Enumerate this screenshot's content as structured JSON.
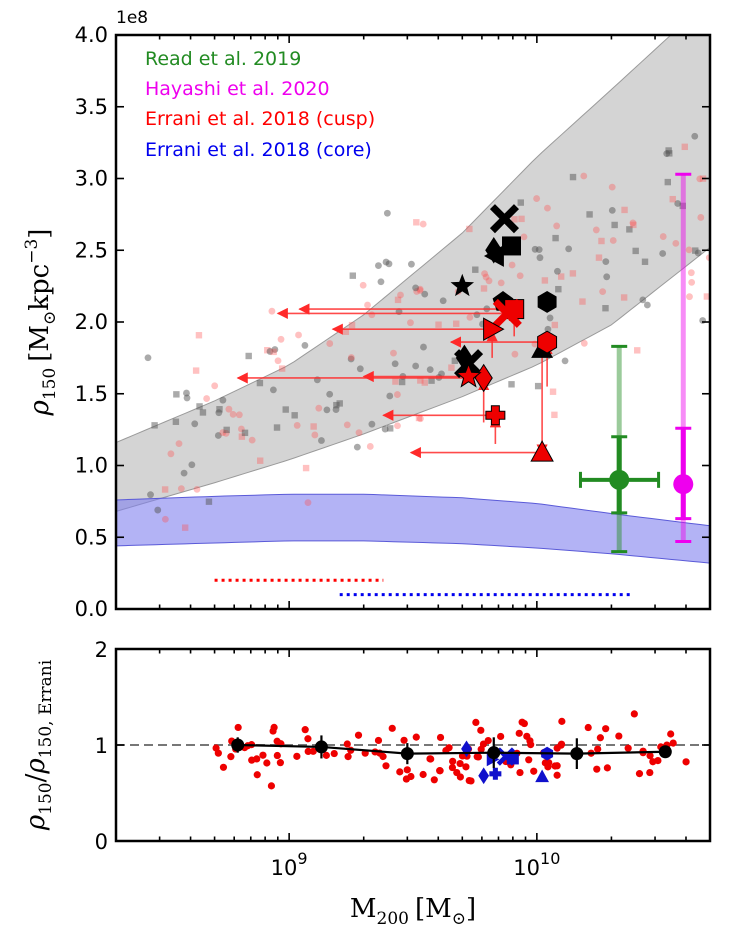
{
  "chart_data": [
    {
      "type": "scatter",
      "panel": "top",
      "xlabel": "",
      "ylabel_parts": {
        "rho": "ρ",
        "sub": "150",
        "unit_open": "[M",
        "odot": "⊙",
        "unit_kpc": "kpc",
        "exp": "−3",
        "unit_close": "]"
      },
      "xscale": "log",
      "xlim": [
        200000000,
        50000000000
      ],
      "ylim": [
        0,
        400000000
      ],
      "y_offset_label": "1e8",
      "yticks": [
        0.0,
        0.5,
        1.0,
        1.5,
        2.0,
        2.5,
        3.0,
        3.5,
        4.0
      ],
      "ytick_labels": [
        "0.0",
        "0.5",
        "1.0",
        "1.5",
        "2.0",
        "2.5",
        "3.0",
        "3.5",
        "4.0"
      ],
      "legend_placement": "top-left",
      "legend_entries": [
        {
          "name": "Read et al. 2019",
          "color": "#228b22"
        },
        {
          "name": "Hayashi et al. 2020",
          "color": "#ee00ee"
        },
        {
          "name": "Errani et al. 2018 (cusp)",
          "color": "#ff0000"
        },
        {
          "name": "Errani et al. 2018 (core)",
          "color": "#0000ee"
        }
      ],
      "colors": {
        "cusp": "#ff0000",
        "core": "#0000ee",
        "read": "#228b22",
        "hayashi": "#ee00ee",
        "band_gray": "#bdbdbd",
        "band_blue": "#8080ee"
      },
      "bands": [
        {
          "name": "cusp band",
          "x": [
            200000000.0,
            500000000.0,
            1000000000.0,
            2000000000.0,
            5000000000.0,
            10000000000.0,
            20000000000.0,
            50000000000.0
          ],
          "lower": [
            0.68,
            0.88,
            1.04,
            1.22,
            1.48,
            1.7,
            1.98,
            2.52
          ],
          "upper": [
            1.16,
            1.45,
            1.7,
            2.05,
            2.62,
            3.15,
            3.62,
            4.25
          ]
        },
        {
          "name": "core band",
          "x": [
            200000000.0,
            500000000.0,
            1000000000.0,
            2000000000.0,
            5000000000.0,
            10000000000.0,
            20000000000.0,
            50000000000.0
          ],
          "lower": [
            0.44,
            0.46,
            0.475,
            0.475,
            0.455,
            0.425,
            0.385,
            0.32
          ],
          "upper": [
            0.76,
            0.785,
            0.8,
            0.8,
            0.775,
            0.735,
            0.665,
            0.58
          ]
        }
      ],
      "range_lines": [
        {
          "series": "cusp",
          "x_from": 500000000.0,
          "x_to": 2400000000.0,
          "y": 0.2
        },
        {
          "series": "core",
          "x_from": 1600000000.0,
          "x_to": 24500000000.0,
          "y": 0.1
        }
      ],
      "observations": [
        {
          "name": "Read et al. 2019",
          "x": 21500000000.0,
          "y": 0.9,
          "y_inner": [
            0.67,
            1.2
          ],
          "y_outer": [
            0.4,
            1.83
          ],
          "x_err": [
            15000000000.0,
            31000000000.0
          ]
        },
        {
          "name": "Hayashi et al. 2020",
          "x": 39000000000.0,
          "y": 0.87,
          "y_inner": [
            0.63,
            1.26
          ],
          "y_outer": [
            0.47,
            3.03
          ]
        }
      ],
      "galaxies": [
        {
          "marker": "x",
          "x": 7400000000.0,
          "y": 2.72,
          "xarrow_to": null,
          "yarrow_from": null
        },
        {
          "marker": "square",
          "x": 7900000000.0,
          "y": 2.53,
          "xarrow_to": null,
          "yarrow_from": null
        },
        {
          "marker": "diamond",
          "x": 6700000000.0,
          "y": 2.5,
          "xarrow_to": null,
          "yarrow_from": null
        },
        {
          "marker": "triangle-left",
          "x": 6800000000.0,
          "y": 2.46,
          "xarrow_to": null,
          "yarrow_from": null
        },
        {
          "marker": "star",
          "x": 5000000000.0,
          "y": 2.25,
          "xarrow_to": null,
          "yarrow_from": null
        },
        {
          "marker": "pentagon",
          "x": 7300000000.0,
          "y": 2.14,
          "xarrow_to": null,
          "yarrow_from": null
        },
        {
          "marker": "hexagon",
          "x": 11000000000.0,
          "y": 2.14,
          "xarrow_to": null,
          "yarrow_from": null
        },
        {
          "marker": "diamond",
          "x": 5100000000.0,
          "y": 1.75,
          "xarrow_to": null,
          "yarrow_from": null
        },
        {
          "marker": "x",
          "x": 5300000000.0,
          "y": 1.71,
          "xarrow_to": null,
          "yarrow_from": null
        },
        {
          "marker": "triangle-up",
          "x": 10500000000.0,
          "y": 1.81,
          "xarrow_to": null,
          "yarrow_from": null
        },
        {
          "marker": "square",
          "x": 8100000000.0,
          "y": 2.09,
          "xarrow_to": 1100000000.0,
          "yarrow_from": 1.9
        },
        {
          "marker": "x",
          "x": 7600000000.0,
          "y": 2.06,
          "xarrow_to": 900000000.0,
          "yarrow_from": null
        },
        {
          "marker": "triangle-right",
          "x": 6600000000.0,
          "y": 1.95,
          "xarrow_to": 1500000000.0,
          "yarrow_from": 1.75
        },
        {
          "marker": "hexagon",
          "x": 11000000000.0,
          "y": 1.86,
          "xarrow_to": 4500000000.0,
          "yarrow_from": 1.55
        },
        {
          "marker": "diamond",
          "x": 6100000000.0,
          "y": 1.61,
          "xarrow_to": 620000000.0,
          "yarrow_from": 1.3
        },
        {
          "marker": "star",
          "x": 5300000000.0,
          "y": 1.62,
          "xarrow_to": 2000000000.0,
          "yarrow_from": null
        },
        {
          "marker": "plus",
          "x": 6800000000.0,
          "y": 1.35,
          "xarrow_to": 2400000000.0,
          "yarrow_from": 1.15
        },
        {
          "marker": "triangle-up",
          "x": 10500000000.0,
          "y": 1.09,
          "xarrow_to": 3100000000.0,
          "yarrow_from": 1.85
        }
      ]
    },
    {
      "type": "scatter",
      "panel": "bottom",
      "xlabel_parts": {
        "M": "M",
        "sub": "200",
        "unit_open": "[M",
        "odot": "⊙",
        "unit_close": "]"
      },
      "ylabel_parts": {
        "rho": "ρ",
        "sub": "150",
        "slash": "/",
        "sub2": "150, Errani"
      },
      "xscale": "log",
      "xlim": [
        200000000,
        50000000000
      ],
      "xtick_labels": [
        {
          "base": "10",
          "exp": "9",
          "x": 1000000000.0
        },
        {
          "base": "10",
          "exp": "10",
          "x": 10000000000.0
        }
      ],
      "ylim": [
        0,
        2
      ],
      "yticks": [
        0,
        1,
        2
      ],
      "ytick_labels": [
        "0",
        "1",
        "2"
      ],
      "reference_line_y": 1.0,
      "binned": {
        "x": [
          620000000.0,
          1350000000.0,
          3000000000.0,
          6700000000.0,
          14500000000.0,
          33000000000.0
        ],
        "y": [
          1.0,
          0.98,
          0.91,
          0.92,
          0.91,
          0.93
        ],
        "err": [
          0.08,
          0.12,
          0.11,
          0.16,
          0.16,
          0.0
        ]
      },
      "core_points": [
        {
          "marker": "diamond",
          "x": 5200000000.0,
          "y": 0.96
        },
        {
          "marker": "hexagon",
          "x": 11000000000.0,
          "y": 0.91
        },
        {
          "marker": "square",
          "x": 8000000000.0,
          "y": 0.86
        },
        {
          "marker": "x",
          "x": 7500000000.0,
          "y": 0.88
        },
        {
          "marker": "triangle-right",
          "x": 6600000000.0,
          "y": 0.85
        },
        {
          "marker": "diamond",
          "x": 6100000000.0,
          "y": 0.68
        },
        {
          "marker": "plus",
          "x": 6800000000.0,
          "y": 0.7
        },
        {
          "marker": "triangle-up",
          "x": 10500000000.0,
          "y": 0.67
        }
      ]
    }
  ]
}
